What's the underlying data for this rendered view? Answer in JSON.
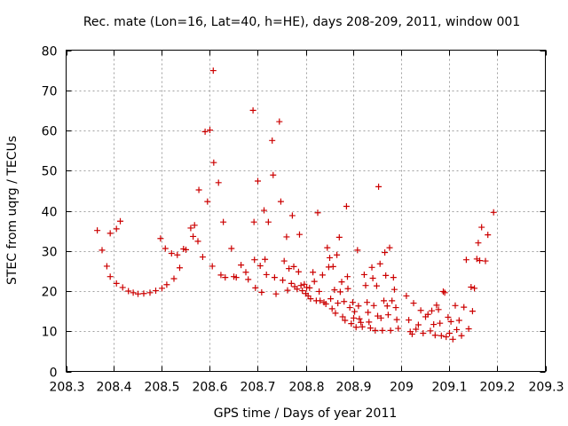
{
  "chart_data": {
    "type": "scatter",
    "title": "Rec. mate (Lon=16, Lat=40, h=HE), days 208-209, 2011, window 001",
    "xlabel": "GPS time / Days of year 2011",
    "ylabel": "STEC from uqrg / TECUs",
    "xlim": [
      208.3,
      209.3
    ],
    "ylim": [
      0,
      80
    ],
    "xticks": [
      208.3,
      208.4,
      208.5,
      208.6,
      208.7,
      208.8,
      208.9,
      209.0,
      209.1,
      209.2,
      209.3
    ],
    "xtick_labels": [
      "208.3",
      "208.4",
      "208.5",
      "208.6",
      "208.7",
      "208.8",
      "208.9",
      "209",
      "209.1",
      "209.2",
      "209.3"
    ],
    "yticks": [
      0,
      10,
      20,
      30,
      40,
      50,
      60,
      70,
      80
    ],
    "ytick_labels": [
      "0",
      "10",
      "20",
      "30",
      "40",
      "50",
      "60",
      "70",
      "80"
    ],
    "grid": true,
    "marker": "plus",
    "color": "#cc0000",
    "points": [
      [
        208.365,
        35.1
      ],
      [
        208.375,
        30.2
      ],
      [
        208.385,
        26.2
      ],
      [
        208.392,
        34.4
      ],
      [
        208.392,
        23.6
      ],
      [
        208.405,
        35.5
      ],
      [
        208.405,
        21.9
      ],
      [
        208.413,
        37.4
      ],
      [
        208.418,
        20.9
      ],
      [
        208.43,
        20.0
      ],
      [
        208.44,
        19.6
      ],
      [
        208.45,
        19.3
      ],
      [
        208.462,
        19.4
      ],
      [
        208.475,
        19.6
      ],
      [
        208.487,
        20.1
      ],
      [
        208.497,
        33.1
      ],
      [
        208.5,
        20.7
      ],
      [
        208.507,
        30.6
      ],
      [
        208.51,
        21.6
      ],
      [
        208.52,
        29.4
      ],
      [
        208.525,
        23.1
      ],
      [
        208.532,
        29.0
      ],
      [
        208.537,
        25.8
      ],
      [
        208.545,
        30.5
      ],
      [
        208.55,
        30.3
      ],
      [
        208.56,
        35.7
      ],
      [
        208.565,
        33.6
      ],
      [
        208.568,
        36.4
      ],
      [
        208.575,
        32.4
      ],
      [
        208.577,
        45.2
      ],
      [
        208.585,
        28.5
      ],
      [
        208.59,
        59.7
      ],
      [
        208.595,
        42.3
      ],
      [
        208.6,
        60.1
      ],
      [
        208.605,
        26.2
      ],
      [
        208.607,
        74.9
      ],
      [
        208.608,
        52.0
      ],
      [
        208.618,
        47.0
      ],
      [
        208.623,
        24.0
      ],
      [
        208.628,
        37.2
      ],
      [
        208.632,
        23.4
      ],
      [
        208.645,
        30.6
      ],
      [
        208.65,
        23.6
      ],
      [
        208.655,
        23.4
      ],
      [
        208.665,
        26.5
      ],
      [
        208.675,
        24.7
      ],
      [
        208.68,
        22.9
      ],
      [
        208.69,
        65.0
      ],
      [
        208.692,
        37.2
      ],
      [
        208.693,
        27.8
      ],
      [
        208.695,
        20.8
      ],
      [
        208.7,
        47.4
      ],
      [
        208.705,
        26.3
      ],
      [
        208.708,
        19.7
      ],
      [
        208.713,
        40.1
      ],
      [
        208.715,
        27.9
      ],
      [
        208.718,
        24.1
      ],
      [
        208.722,
        37.2
      ],
      [
        208.73,
        57.5
      ],
      [
        208.732,
        48.9
      ],
      [
        208.735,
        23.4
      ],
      [
        208.738,
        19.3
      ],
      [
        208.745,
        62.2
      ],
      [
        208.748,
        42.3
      ],
      [
        208.752,
        22.7
      ],
      [
        208.755,
        27.5
      ],
      [
        208.76,
        33.5
      ],
      [
        208.762,
        20.2
      ],
      [
        208.765,
        25.6
      ],
      [
        208.77,
        21.9
      ],
      [
        208.772,
        38.8
      ],
      [
        208.775,
        26.1
      ],
      [
        208.777,
        21.1
      ],
      [
        208.782,
        20.5
      ],
      [
        208.785,
        24.8
      ],
      [
        208.787,
        34.1
      ],
      [
        208.79,
        21.4
      ],
      [
        208.793,
        20.1
      ],
      [
        208.797,
        21.7
      ],
      [
        208.8,
        19.4
      ],
      [
        208.802,
        20.9
      ],
      [
        208.805,
        18.8
      ],
      [
        208.808,
        20.8
      ],
      [
        208.81,
        18.1
      ],
      [
        208.815,
        24.7
      ],
      [
        208.818,
        22.4
      ],
      [
        208.822,
        17.6
      ],
      [
        208.825,
        39.5
      ],
      [
        208.828,
        19.9
      ],
      [
        208.83,
        17.6
      ],
      [
        208.835,
        24.0
      ],
      [
        208.838,
        17.2
      ],
      [
        208.842,
        16.8
      ],
      [
        208.845,
        30.8
      ],
      [
        208.848,
        26.0
      ],
      [
        208.85,
        28.3
      ],
      [
        208.852,
        18.1
      ],
      [
        208.855,
        15.6
      ],
      [
        208.857,
        26.1
      ],
      [
        208.86,
        20.3
      ],
      [
        208.862,
        14.5
      ],
      [
        208.865,
        29.0
      ],
      [
        208.867,
        17.0
      ],
      [
        208.87,
        33.4
      ],
      [
        208.872,
        19.8
      ],
      [
        208.875,
        22.3
      ],
      [
        208.877,
        13.6
      ],
      [
        208.88,
        17.4
      ],
      [
        208.882,
        12.7
      ],
      [
        208.885,
        41.1
      ],
      [
        208.887,
        23.6
      ],
      [
        208.888,
        20.6
      ],
      [
        208.892,
        15.9
      ],
      [
        208.895,
        11.9
      ],
      [
        208.898,
        17.2
      ],
      [
        208.9,
        13.3
      ],
      [
        208.902,
        14.9
      ],
      [
        208.905,
        11.0
      ],
      [
        208.908,
        30.2
      ],
      [
        208.91,
        16.3
      ],
      [
        208.912,
        13.1
      ],
      [
        208.915,
        12.2
      ],
      [
        208.918,
        11.1
      ],
      [
        208.922,
        24.1
      ],
      [
        208.925,
        21.4
      ],
      [
        208.928,
        17.2
      ],
      [
        208.93,
        14.7
      ],
      [
        208.932,
        12.3
      ],
      [
        208.935,
        10.8
      ],
      [
        208.938,
        25.9
      ],
      [
        208.94,
        23.2
      ],
      [
        208.942,
        16.4
      ],
      [
        208.945,
        10.2
      ],
      [
        208.948,
        21.3
      ],
      [
        208.95,
        13.8
      ],
      [
        208.952,
        46.0
      ],
      [
        208.955,
        26.8
      ],
      [
        208.957,
        13.3
      ],
      [
        208.96,
        10.2
      ],
      [
        208.963,
        17.6
      ],
      [
        208.965,
        29.6
      ],
      [
        208.967,
        23.9
      ],
      [
        208.97,
        16.3
      ],
      [
        208.972,
        14.1
      ],
      [
        208.975,
        30.8
      ],
      [
        208.977,
        10.2
      ],
      [
        208.98,
        17.6
      ],
      [
        208.983,
        23.4
      ],
      [
        208.985,
        20.4
      ],
      [
        208.988,
        15.9
      ],
      [
        208.99,
        12.9
      ],
      [
        208.993,
        10.7
      ],
      [
        209.01,
        18.8
      ],
      [
        209.015,
        12.8
      ],
      [
        209.018,
        9.9
      ],
      [
        209.022,
        9.3
      ],
      [
        209.025,
        17.0
      ],
      [
        209.03,
        10.5
      ],
      [
        209.035,
        11.6
      ],
      [
        209.04,
        15.2
      ],
      [
        209.045,
        9.5
      ],
      [
        209.05,
        13.6
      ],
      [
        209.055,
        14.2
      ],
      [
        209.06,
        10.1
      ],
      [
        209.063,
        15.1
      ],
      [
        209.067,
        11.7
      ],
      [
        209.07,
        9.0
      ],
      [
        209.073,
        16.5
      ],
      [
        209.077,
        15.4
      ],
      [
        209.08,
        12.0
      ],
      [
        209.083,
        8.9
      ],
      [
        209.087,
        19.9
      ],
      [
        209.09,
        19.6
      ],
      [
        209.093,
        8.6
      ],
      [
        209.097,
        13.5
      ],
      [
        209.1,
        9.5
      ],
      [
        209.103,
        12.4
      ],
      [
        209.107,
        8.0
      ],
      [
        209.112,
        16.4
      ],
      [
        209.115,
        10.4
      ],
      [
        209.12,
        12.7
      ],
      [
        209.125,
        8.9
      ],
      [
        209.13,
        16.0
      ],
      [
        209.135,
        27.8
      ],
      [
        209.14,
        10.6
      ],
      [
        209.145,
        21.0
      ],
      [
        209.148,
        15.0
      ],
      [
        209.152,
        20.7
      ],
      [
        209.157,
        28.0
      ],
      [
        209.16,
        32.0
      ],
      [
        209.163,
        27.6
      ],
      [
        209.167,
        35.9
      ],
      [
        209.175,
        27.5
      ],
      [
        209.18,
        34.0
      ],
      [
        209.192,
        39.6
      ]
    ]
  }
}
